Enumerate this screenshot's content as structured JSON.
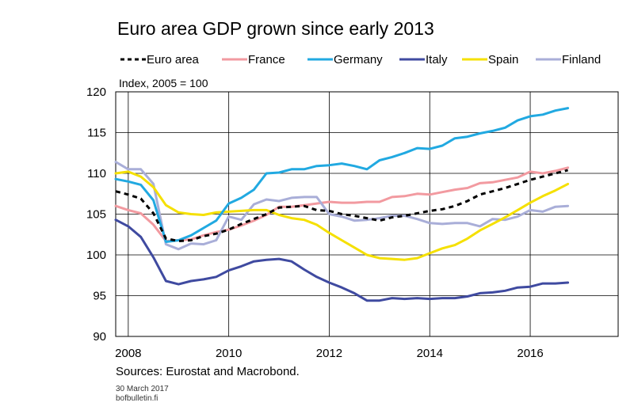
{
  "chart_data": {
    "type": "line",
    "title": "Euro area GDP grown since early 2013",
    "ylabel": "Index, 2005 = 100",
    "xlim": [
      2007.75,
      2017.75
    ],
    "ylim": [
      90,
      120
    ],
    "yticks": [
      90,
      95,
      100,
      105,
      110,
      115,
      120
    ],
    "xticks": [
      2008,
      2010,
      2012,
      2014,
      2016
    ],
    "grid": true,
    "legend_position": "top",
    "x": [
      2007.75,
      2008.0,
      2008.25,
      2008.5,
      2008.75,
      2009.0,
      2009.25,
      2009.5,
      2009.75,
      2010.0,
      2010.25,
      2010.5,
      2010.75,
      2011.0,
      2011.25,
      2011.5,
      2011.75,
      2012.0,
      2012.25,
      2012.5,
      2012.75,
      2013.0,
      2013.25,
      2013.5,
      2013.75,
      2014.0,
      2014.25,
      2014.5,
      2014.75,
      2015.0,
      2015.25,
      2015.5,
      2015.75,
      2016.0,
      2016.25,
      2016.5,
      2016.75
    ],
    "series": [
      {
        "name": "Euro area",
        "color": "#000000",
        "dash": true,
        "values": [
          107.8,
          107.4,
          106.9,
          105.1,
          102.0,
          101.7,
          101.8,
          102.3,
          102.6,
          103.1,
          103.8,
          104.4,
          105.0,
          105.8,
          105.9,
          106.0,
          105.5,
          105.4,
          105.0,
          104.8,
          104.5,
          104.2,
          104.6,
          104.8,
          105.1,
          105.4,
          105.6,
          106.0,
          106.6,
          107.4,
          107.8,
          108.2,
          108.7,
          109.2,
          109.6,
          110.0,
          110.4
        ]
      },
      {
        "name": "France",
        "color": "#f29aa0",
        "dash": false,
        "values": [
          106.0,
          105.5,
          105.1,
          103.7,
          101.7,
          101.8,
          101.9,
          102.4,
          102.8,
          103.1,
          103.6,
          104.2,
          104.9,
          105.9,
          105.9,
          106.1,
          106.3,
          106.5,
          106.4,
          106.4,
          106.5,
          106.5,
          107.1,
          107.2,
          107.5,
          107.4,
          107.7,
          108.0,
          108.2,
          108.8,
          108.9,
          109.2,
          109.5,
          110.2,
          110.0,
          110.3,
          110.7
        ]
      },
      {
        "name": "Germany",
        "color": "#21a9e1",
        "dash": false,
        "values": [
          109.3,
          109.0,
          108.6,
          106.7,
          101.6,
          101.8,
          102.4,
          103.3,
          104.2,
          106.3,
          107.0,
          108.0,
          110.0,
          110.1,
          110.5,
          110.5,
          110.9,
          111.0,
          111.2,
          110.9,
          110.5,
          111.6,
          112.0,
          112.5,
          113.1,
          113.0,
          113.4,
          114.3,
          114.5,
          114.9,
          115.2,
          115.6,
          116.5,
          117.0,
          117.2,
          117.7,
          118.0
        ]
      },
      {
        "name": "Italy",
        "color": "#3f4aa0",
        "dash": false,
        "values": [
          104.3,
          103.5,
          102.2,
          99.7,
          96.8,
          96.4,
          96.8,
          97.0,
          97.3,
          98.1,
          98.6,
          99.2,
          99.4,
          99.5,
          99.2,
          98.2,
          97.3,
          96.6,
          96.0,
          95.3,
          94.4,
          94.4,
          94.7,
          94.6,
          94.7,
          94.6,
          94.7,
          94.7,
          94.9,
          95.3,
          95.4,
          95.6,
          96.0,
          96.1,
          96.5,
          96.5,
          96.6
        ]
      },
      {
        "name": "Spain",
        "color": "#f5e000",
        "dash": false,
        "values": [
          110.0,
          110.2,
          109.6,
          108.3,
          106.1,
          105.2,
          105.0,
          104.9,
          105.2,
          105.3,
          105.4,
          105.5,
          105.5,
          104.9,
          104.5,
          104.3,
          103.7,
          102.7,
          101.8,
          100.9,
          100.0,
          99.6,
          99.5,
          99.4,
          99.6,
          100.2,
          100.8,
          101.2,
          102.0,
          103.0,
          103.8,
          104.6,
          105.5,
          106.4,
          107.2,
          107.9,
          108.7
        ]
      },
      {
        "name": "Finland",
        "color": "#a9aed8",
        "dash": false,
        "values": [
          111.4,
          110.5,
          110.5,
          108.7,
          101.3,
          100.7,
          101.4,
          101.3,
          101.8,
          104.7,
          104.3,
          106.2,
          106.8,
          106.6,
          107.0,
          107.1,
          107.1,
          105.0,
          104.7,
          104.2,
          104.3,
          104.5,
          104.8,
          104.8,
          104.4,
          103.9,
          103.8,
          103.9,
          103.9,
          103.5,
          104.4,
          104.3,
          104.7,
          105.5,
          105.3,
          105.9,
          106.0
        ]
      }
    ]
  },
  "sources": "Sources: Eurostat and Macrobond.",
  "date": "30 March 2017",
  "site": "bofbulletin.fi"
}
